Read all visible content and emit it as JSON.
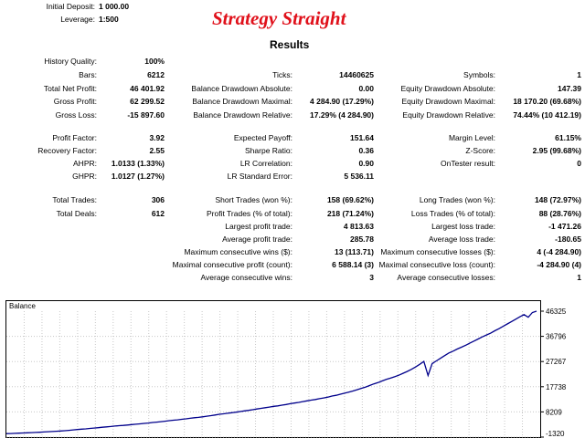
{
  "header": {
    "initial_deposit_label": "Initial Deposit:",
    "initial_deposit_value": "1 000.00",
    "leverage_label": "Leverage:",
    "leverage_value": "1:500",
    "title": "Strategy Straight",
    "results_label": "Results"
  },
  "stats": {
    "history_quality_label": "History Quality:",
    "history_quality_value": "100%",
    "bars_label": "Bars:",
    "bars_value": "6212",
    "total_net_profit_label": "Total Net Profit:",
    "total_net_profit_value": "46 401.92",
    "gross_profit_label": "Gross Profit:",
    "gross_profit_value": "62 299.52",
    "gross_loss_label": "Gross Loss:",
    "gross_loss_value": "-15 897.60",
    "ticks_label": "Ticks:",
    "ticks_value": "14460625",
    "bal_dd_abs_label": "Balance Drawdown Absolute:",
    "bal_dd_abs_value": "0.00",
    "bal_dd_max_label": "Balance Drawdown Maximal:",
    "bal_dd_max_value": "4 284.90 (17.29%)",
    "bal_dd_rel_label": "Balance Drawdown Relative:",
    "bal_dd_rel_value": "17.29% (4 284.90)",
    "symbols_label": "Symbols:",
    "symbols_value": "1",
    "eq_dd_abs_label": "Equity Drawdown Absolute:",
    "eq_dd_abs_value": "147.39",
    "eq_dd_max_label": "Equity Drawdown Maximal:",
    "eq_dd_max_value": "18 170.20 (69.68%)",
    "eq_dd_rel_label": "Equity Drawdown Relative:",
    "eq_dd_rel_value": "74.44% (10 412.19)",
    "profit_factor_label": "Profit Factor:",
    "profit_factor_value": "3.92",
    "recovery_factor_label": "Recovery Factor:",
    "recovery_factor_value": "2.55",
    "ahpr_label": "AHPR:",
    "ahpr_value": "1.0133 (1.33%)",
    "ghpr_label": "GHPR:",
    "ghpr_value": "1.0127 (1.27%)",
    "expected_payoff_label": "Expected Payoff:",
    "expected_payoff_value": "151.64",
    "sharpe_label": "Sharpe Ratio:",
    "sharpe_value": "0.36",
    "lr_corr_label": "LR Correlation:",
    "lr_corr_value": "0.90",
    "lr_err_label": "LR Standard Error:",
    "lr_err_value": "5 536.11",
    "margin_level_label": "Margin Level:",
    "margin_level_value": "61.15%",
    "zscore_label": "Z-Score:",
    "zscore_value": "2.95 (99.68%)",
    "ontester_label": "OnTester result:",
    "ontester_value": "0",
    "total_trades_label": "Total Trades:",
    "total_trades_value": "306",
    "total_deals_label": "Total Deals:",
    "total_deals_value": "612",
    "short_trades_label": "Short Trades (won %):",
    "short_trades_value": "158 (69.62%)",
    "profit_trades_label": "Profit Trades (% of total):",
    "profit_trades_value": "218 (71.24%)",
    "largest_profit_label": "Largest profit trade:",
    "largest_profit_value": "4 813.63",
    "avg_profit_label": "Average profit trade:",
    "avg_profit_value": "285.78",
    "max_consec_wins_label": "Maximum consecutive wins ($):",
    "max_consec_wins_value": "13 (113.71)",
    "maximal_consec_profit_label": "Maximal consecutive profit (count):",
    "maximal_consec_profit_value": "6 588.14 (3)",
    "avg_consec_wins_label": "Average consecutive wins:",
    "avg_consec_wins_value": "3",
    "long_trades_label": "Long Trades (won %):",
    "long_trades_value": "148 (72.97%)",
    "loss_trades_label": "Loss Trades (% of total):",
    "loss_trades_value": "88 (28.76%)",
    "largest_loss_label": "Largest loss trade:",
    "largest_loss_value": "-1 471.26",
    "avg_loss_label": "Average loss trade:",
    "avg_loss_value": "-180.65",
    "max_consec_losses_label": "Maximum consecutive losses ($):",
    "max_consec_losses_value": "4 (-4 284.90)",
    "maximal_consec_loss_label": "Maximal consecutive loss (count):",
    "maximal_consec_loss_value": "-4 284.90 (4)",
    "avg_consec_losses_label": "Average consecutive losses:",
    "avg_consec_losses_value": "1"
  },
  "chart_data": {
    "type": "line",
    "title": "Balance",
    "line_color": "#00008b",
    "grid": true,
    "y_ticks": [
      "46325",
      "36796",
      "27267",
      "17738",
      "8209",
      "-1320"
    ],
    "ylim": [
      -1320,
      46325
    ],
    "series": [
      {
        "values": [
          0,
          20,
          80,
          150,
          220,
          300,
          380,
          450,
          520,
          610,
          700,
          800,
          880,
          980,
          1100,
          1250,
          1400,
          1550,
          1700,
          1800,
          1950,
          2100,
          2250,
          2400,
          2550,
          2700,
          2850,
          3000,
          3100,
          3250,
          3400,
          3550,
          3700,
          3850,
          4000,
          4200,
          4350,
          4500,
          4700,
          4900,
          5050,
          5200,
          5400,
          5600,
          5800,
          6000,
          6150,
          6350,
          6600,
          6800,
          7050,
          7300,
          7500,
          7700,
          7900,
          8100,
          8350,
          8600,
          8800,
          9050,
          9300,
          9550,
          9800,
          10050,
          10300,
          10500,
          10750,
          11000,
          11300,
          11550,
          11800,
          12100,
          12400,
          12650,
          12900,
          13200,
          13500,
          13800,
          14200,
          14500,
          14900,
          15300,
          15700,
          16100,
          16600,
          17100,
          17600,
          18200,
          18800,
          19300,
          19900,
          20500,
          21000,
          21500,
          22100,
          22800,
          23500,
          24300,
          25200,
          26200,
          27300,
          22000,
          26500,
          27500,
          28500,
          29500,
          30500,
          31200,
          32000,
          32700,
          33400,
          34200,
          35000,
          35800,
          36600,
          37300,
          38000,
          38900,
          39700,
          40600,
          41500,
          42400,
          43300,
          44200,
          45000,
          44000,
          45800,
          46325
        ]
      }
    ]
  }
}
